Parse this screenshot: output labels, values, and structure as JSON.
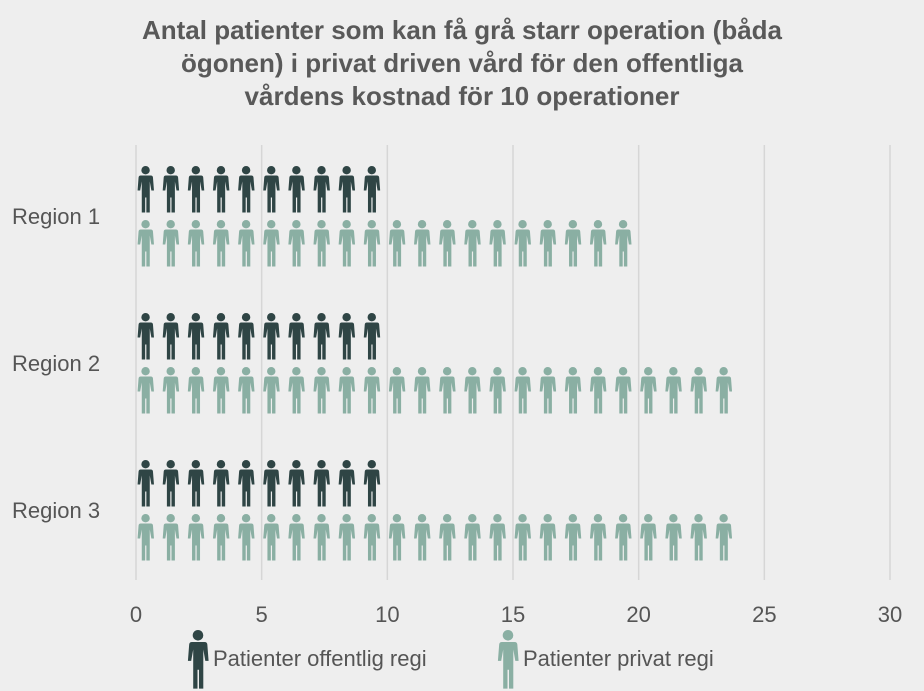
{
  "chart_data": {
    "type": "bar",
    "title": "Antal patienter som kan få grå starr operation (båda\nögonen) i privat driven vård för den offentliga\nvårdens kostnad för 10 operationer",
    "categories": [
      "Region 1",
      "Region 2",
      "Region 3"
    ],
    "series": [
      {
        "name": "Patienter offentlig regi",
        "values": [
          10,
          10,
          10
        ],
        "color": "#2f4545",
        "icon": "person-icon"
      },
      {
        "name": "Patienter privat regi",
        "values": [
          20,
          24,
          24
        ],
        "color": "#8aafa3",
        "icon": "person-icon"
      }
    ],
    "xlim": [
      0,
      30
    ],
    "xticks": [
      "0",
      "5",
      "10",
      "15",
      "20",
      "25",
      "30"
    ],
    "grid": "vertical",
    "legend": "bottom",
    "orientation": "horizontal",
    "background": "#eeeeee"
  }
}
